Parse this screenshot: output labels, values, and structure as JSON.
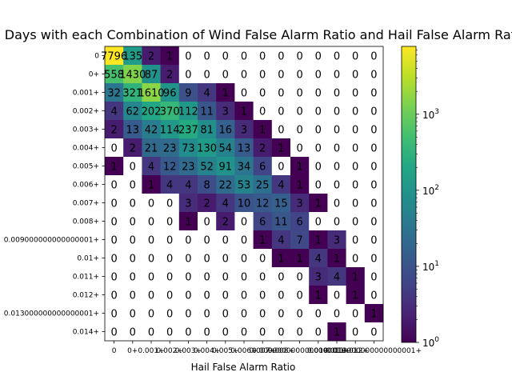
{
  "chart_data": {
    "type": "heatmap",
    "title": "All Days with each Combination of Wind False Alarm Ratio and Hail False Alarm Ratio",
    "xlabel": "Hail False Alarm Ratio",
    "ylabel": "",
    "x_categories": [
      "0",
      "0+",
      "0.001+",
      "0.002+",
      "0.003+",
      "0.004+",
      "0.005+",
      "0.006+",
      "0.007+",
      "0.008+",
      "0.009000000000000001+",
      "0.01+",
      "0.011+",
      "0.012+",
      "0.013000000000000001+"
    ],
    "y_categories": [
      "0",
      "0+",
      "0.001+",
      "0.002+",
      "0.003+",
      "0.004+",
      "0.005+",
      "0.006+",
      "0.007+",
      "0.008+",
      "0.009000000000000001+",
      "0.01+",
      "0.011+",
      "0.012+",
      "0.013000000000000001+",
      "0.014+"
    ],
    "values": [
      [
        7796,
        135,
        2,
        1,
        0,
        0,
        0,
        0,
        0,
        0,
        0,
        0,
        0,
        0,
        0
      ],
      [
        558,
        1430,
        87,
        2,
        0,
        0,
        0,
        0,
        0,
        0,
        0,
        0,
        0,
        0,
        0
      ],
      [
        32,
        321,
        1610,
        96,
        9,
        4,
        1,
        0,
        0,
        0,
        0,
        0,
        0,
        0,
        0
      ],
      [
        4,
        62,
        202,
        370,
        112,
        11,
        3,
        1,
        0,
        0,
        0,
        0,
        0,
        0,
        0
      ],
      [
        2,
        13,
        42,
        114,
        237,
        81,
        16,
        3,
        1,
        0,
        0,
        0,
        0,
        0,
        0
      ],
      [
        0,
        2,
        21,
        23,
        73,
        130,
        54,
        13,
        2,
        1,
        0,
        0,
        0,
        0,
        0
      ],
      [
        1,
        0,
        4,
        12,
        23,
        52,
        91,
        34,
        6,
        0,
        1,
        0,
        0,
        0,
        0
      ],
      [
        0,
        0,
        1,
        4,
        4,
        8,
        22,
        53,
        25,
        4,
        1,
        0,
        0,
        0,
        0
      ],
      [
        0,
        0,
        0,
        0,
        3,
        2,
        4,
        10,
        12,
        15,
        3,
        1,
        0,
        0,
        0
      ],
      [
        0,
        0,
        0,
        0,
        1,
        0,
        2,
        0,
        6,
        11,
        6,
        0,
        0,
        0,
        0
      ],
      [
        0,
        0,
        0,
        0,
        0,
        0,
        0,
        0,
        1,
        4,
        7,
        1,
        3,
        0,
        0
      ],
      [
        0,
        0,
        0,
        0,
        0,
        0,
        0,
        0,
        0,
        1,
        1,
        4,
        1,
        0,
        0
      ],
      [
        0,
        0,
        0,
        0,
        0,
        0,
        0,
        0,
        0,
        0,
        0,
        3,
        4,
        1,
        0
      ],
      [
        0,
        0,
        0,
        0,
        0,
        0,
        0,
        0,
        0,
        0,
        0,
        1,
        0,
        1,
        0
      ],
      [
        0,
        0,
        0,
        0,
        0,
        0,
        0,
        0,
        0,
        0,
        0,
        0,
        0,
        0,
        1
      ],
      [
        0,
        0,
        0,
        0,
        0,
        0,
        0,
        0,
        0,
        0,
        0,
        0,
        1,
        0,
        0
      ]
    ],
    "colorscale": "viridis",
    "color_scale_type": "log",
    "color_range": [
      1,
      7796
    ],
    "colorbar_ticks": [
      {
        "value": 1,
        "label": "10",
        "exp": "0"
      },
      {
        "value": 10,
        "label": "10",
        "exp": "1"
      },
      {
        "value": 100,
        "label": "10",
        "exp": "2"
      },
      {
        "value": 1000,
        "label": "10",
        "exp": "3"
      }
    ],
    "zero_color": "#ffffff",
    "grid": false
  }
}
